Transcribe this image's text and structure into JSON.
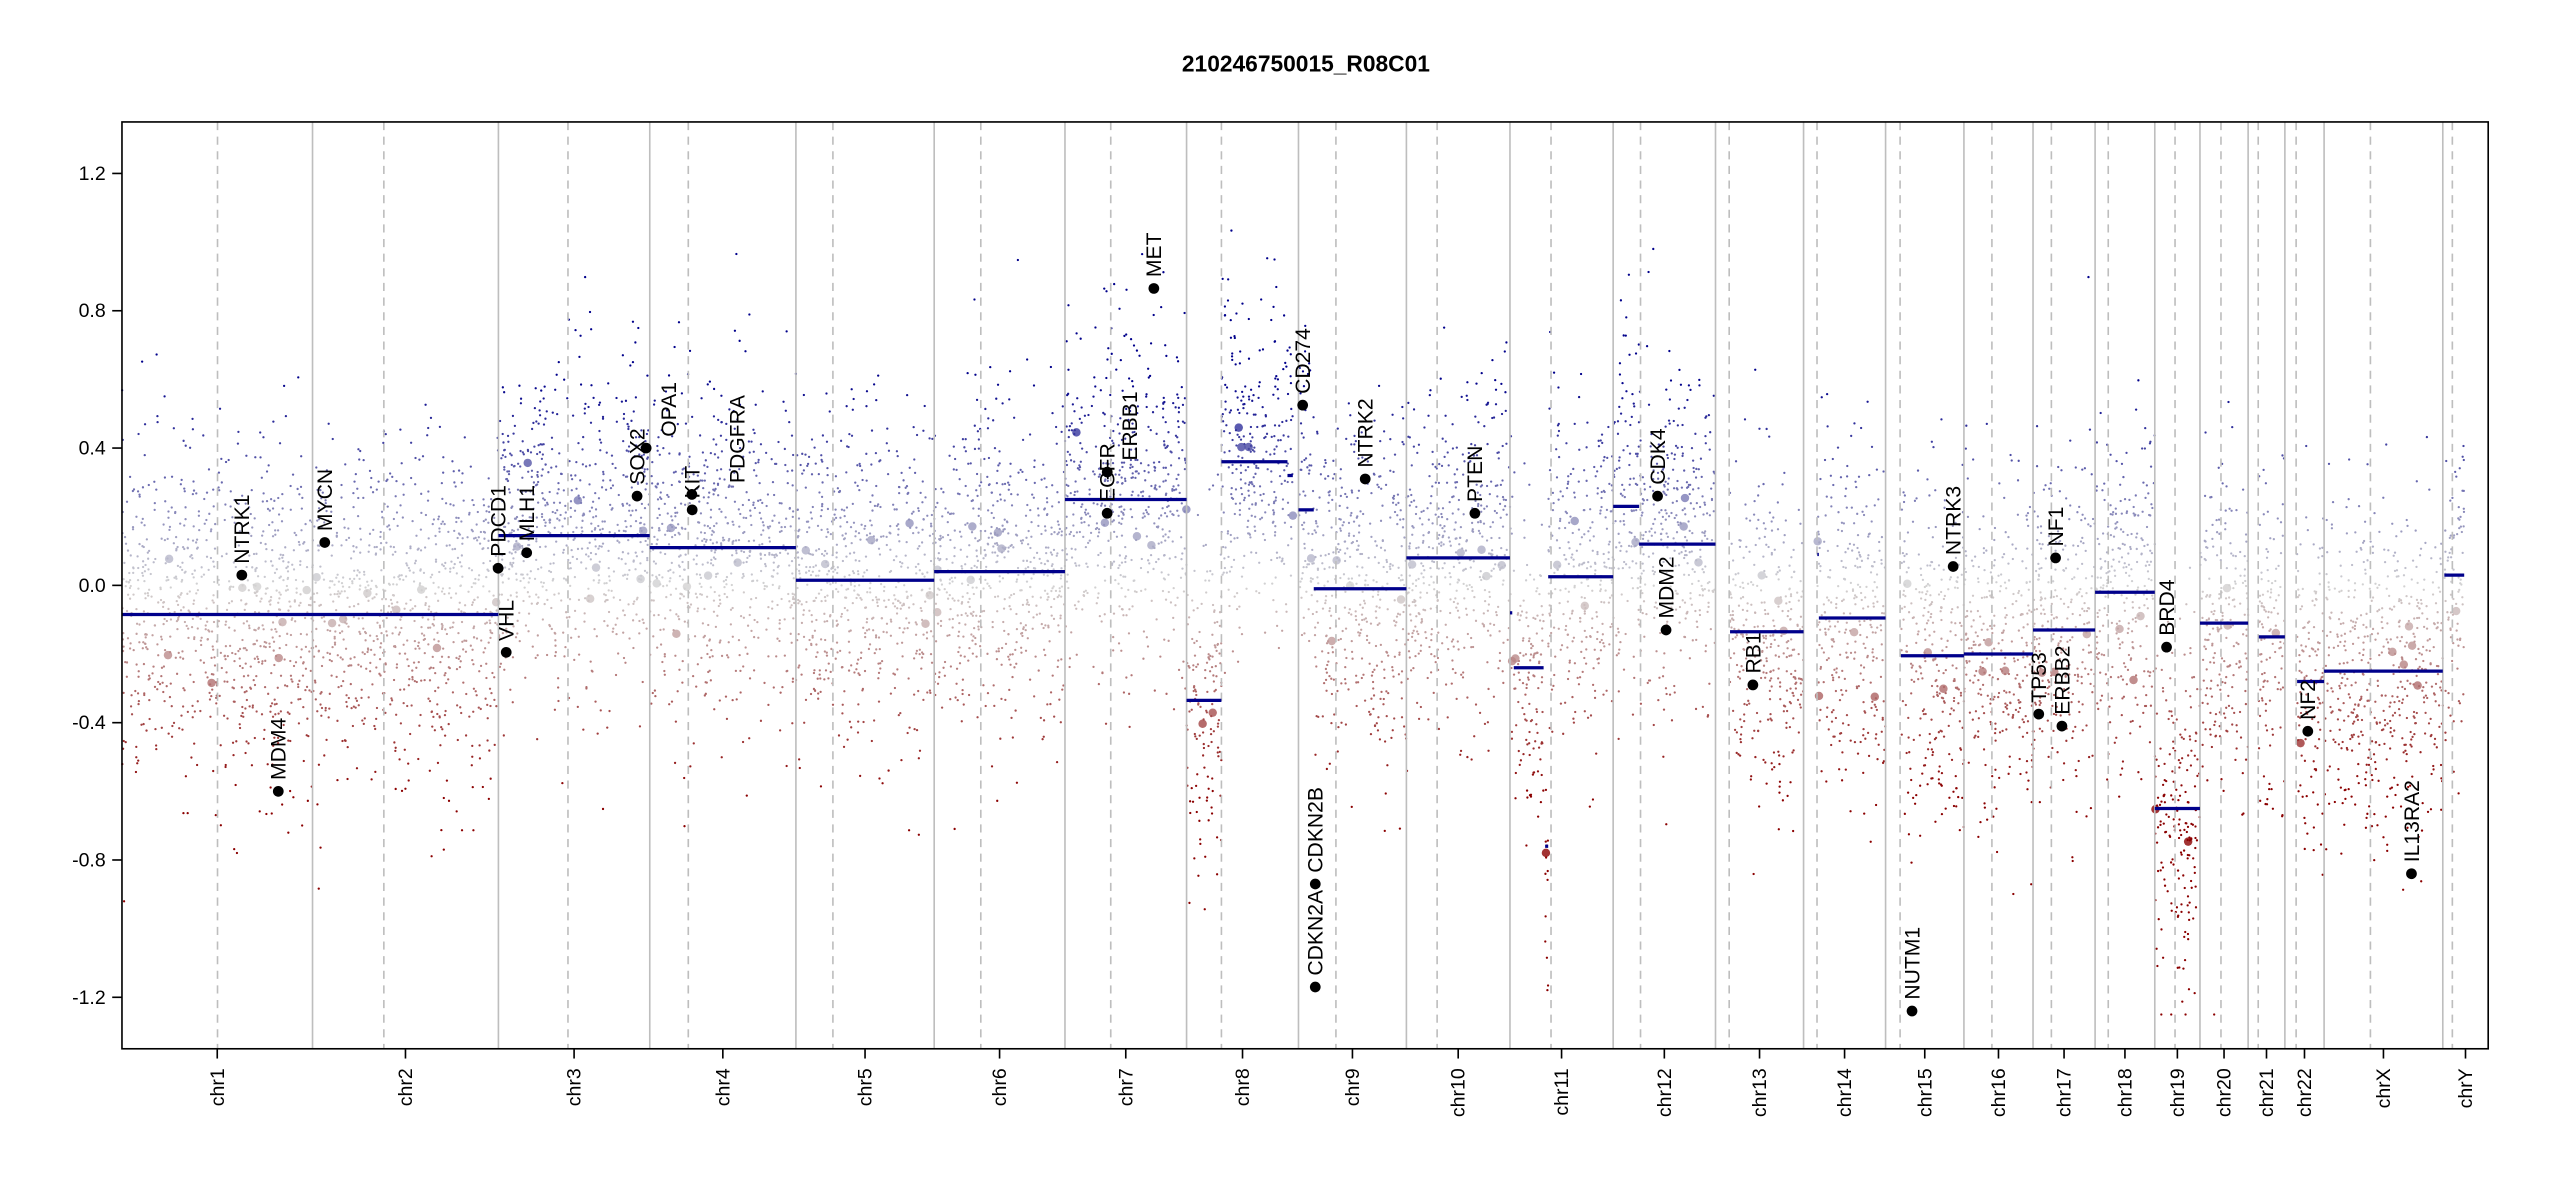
{
  "chart_data": {
    "type": "scatter",
    "title": "210246750015_R08C01",
    "xlabel": "",
    "ylabel": "",
    "ylim": [
      -1.35,
      1.35
    ],
    "yticks": [
      "-1.2",
      "-0.8",
      "-0.4",
      "0.0",
      "0.4",
      "0.8",
      "1.2"
    ],
    "grid": false,
    "colors": {
      "gain": "#00008b",
      "neutral": "#d3d3d3",
      "loss": "#8b0000",
      "segment": "#00008b",
      "chrom_line": "#bebebe",
      "gene": "#000000"
    },
    "chromosomes": [
      {
        "name": "chr1",
        "length_mb": 249.3,
        "centromere_mb": 125.0
      },
      {
        "name": "chr2",
        "length_mb": 243.2,
        "centromere_mb": 93.3
      },
      {
        "name": "chr3",
        "length_mb": 198.0,
        "centromere_mb": 91.0
      },
      {
        "name": "chr4",
        "length_mb": 191.2,
        "centromere_mb": 50.4
      },
      {
        "name": "chr5",
        "length_mb": 180.9,
        "centromere_mb": 48.4
      },
      {
        "name": "chr6",
        "length_mb": 171.1,
        "centromere_mb": 61.0
      },
      {
        "name": "chr7",
        "length_mb": 159.1,
        "centromere_mb": 59.9
      },
      {
        "name": "chr8",
        "length_mb": 146.4,
        "centromere_mb": 45.6
      },
      {
        "name": "chr9",
        "length_mb": 141.2,
        "centromere_mb": 49.0
      },
      {
        "name": "chr10",
        "length_mb": 135.5,
        "centromere_mb": 40.2
      },
      {
        "name": "chr11",
        "length_mb": 135.0,
        "centromere_mb": 53.7
      },
      {
        "name": "chr12",
        "length_mb": 133.9,
        "centromere_mb": 35.8
      },
      {
        "name": "chr13",
        "length_mb": 115.2,
        "centromere_mb": 17.9
      },
      {
        "name": "chr14",
        "length_mb": 107.3,
        "centromere_mb": 17.6
      },
      {
        "name": "chr15",
        "length_mb": 102.5,
        "centromere_mb": 19.0
      },
      {
        "name": "chr16",
        "length_mb": 90.4,
        "centromere_mb": 36.6
      },
      {
        "name": "chr17",
        "length_mb": 81.2,
        "centromere_mb": 24.0
      },
      {
        "name": "chr18",
        "length_mb": 78.1,
        "centromere_mb": 17.2
      },
      {
        "name": "chr19",
        "length_mb": 59.1,
        "centromere_mb": 26.5
      },
      {
        "name": "chr20",
        "length_mb": 63.0,
        "centromere_mb": 27.5
      },
      {
        "name": "chr21",
        "length_mb": 48.1,
        "centromere_mb": 13.2
      },
      {
        "name": "chr22",
        "length_mb": 51.3,
        "centromere_mb": 14.7
      },
      {
        "name": "chrX",
        "length_mb": 155.3,
        "centromere_mb": 60.6
      },
      {
        "name": "chrY",
        "length_mb": 59.4,
        "centromere_mb": 12.5
      }
    ],
    "segments": [
      {
        "chr": "chr1",
        "start_mb": 0,
        "end_mb": 249.3,
        "value": -0.085
      },
      {
        "chr": "chr2",
        "start_mb": 0,
        "end_mb": 243.2,
        "value": -0.085
      },
      {
        "chr": "chr3",
        "start_mb": 0,
        "end_mb": 198.0,
        "value": 0.145
      },
      {
        "chr": "chr4",
        "start_mb": 0,
        "end_mb": 191.2,
        "value": 0.11
      },
      {
        "chr": "chr5",
        "start_mb": 0,
        "end_mb": 180.9,
        "value": 0.015
      },
      {
        "chr": "chr6",
        "start_mb": 0,
        "end_mb": 171.1,
        "value": 0.04
      },
      {
        "chr": "chr7",
        "start_mb": 0,
        "end_mb": 159.1,
        "value": 0.25
      },
      {
        "chr": "chr8",
        "start_mb": 0,
        "end_mb": 45.6,
        "value": -0.335
      },
      {
        "chr": "chr8",
        "start_mb": 45.6,
        "end_mb": 132,
        "value": 0.36
      },
      {
        "chr": "chr8",
        "start_mb": 132,
        "end_mb": 139,
        "value": 0.32
      },
      {
        "chr": "chr9",
        "start_mb": 0,
        "end_mb": 20,
        "value": 0.22
      },
      {
        "chr": "chr9",
        "start_mb": 20,
        "end_mb": 141.2,
        "value": -0.01
      },
      {
        "chr": "chr10",
        "start_mb": 0,
        "end_mb": 135.5,
        "value": 0.08
      },
      {
        "chr": "chr11",
        "start_mb": 0,
        "end_mb": 3,
        "value": -0.08
      },
      {
        "chr": "chr11",
        "start_mb": 5,
        "end_mb": 44,
        "value": -0.24
      },
      {
        "chr": "chr11",
        "start_mb": 46,
        "end_mb": 50,
        "value": -0.76
      },
      {
        "chr": "chr11",
        "start_mb": 50,
        "end_mb": 135.0,
        "value": 0.025
      },
      {
        "chr": "chr12",
        "start_mb": 0,
        "end_mb": 34,
        "value": 0.23
      },
      {
        "chr": "chr12",
        "start_mb": 34,
        "end_mb": 133.9,
        "value": 0.12
      },
      {
        "chr": "chr13",
        "start_mb": 19,
        "end_mb": 115.2,
        "value": -0.135
      },
      {
        "chr": "chr14",
        "start_mb": 18,
        "end_mb": 20,
        "value": 0.09
      },
      {
        "chr": "chr14",
        "start_mb": 20,
        "end_mb": 107.3,
        "value": -0.095
      },
      {
        "chr": "chr15",
        "start_mb": 20,
        "end_mb": 102.5,
        "value": -0.205
      },
      {
        "chr": "chr16",
        "start_mb": 0,
        "end_mb": 90.4,
        "value": -0.2
      },
      {
        "chr": "chr17",
        "start_mb": 0,
        "end_mb": 81.2,
        "value": -0.13
      },
      {
        "chr": "chr18",
        "start_mb": 0,
        "end_mb": 78.1,
        "value": -0.02
      },
      {
        "chr": "chr19",
        "start_mb": 0,
        "end_mb": 59.1,
        "value": -0.65
      },
      {
        "chr": "chr20",
        "start_mb": 0,
        "end_mb": 63.0,
        "value": -0.11
      },
      {
        "chr": "chr21",
        "start_mb": 14,
        "end_mb": 48.1,
        "value": -0.15
      },
      {
        "chr": "chr22",
        "start_mb": 16,
        "end_mb": 51.3,
        "value": -0.28
      },
      {
        "chr": "chrX",
        "start_mb": 0,
        "end_mb": 155.3,
        "value": -0.25
      },
      {
        "chr": "chrY",
        "start_mb": 2,
        "end_mb": 28,
        "value": 0.03
      }
    ],
    "genes": [
      {
        "name": "NTRK1",
        "chr": "chr1",
        "pos_mb": 156.8,
        "value": 0.03
      },
      {
        "name": "MDM4",
        "chr": "chr1",
        "pos_mb": 204.5,
        "value": -0.6
      },
      {
        "name": "MYCN",
        "chr": "chr2",
        "pos_mb": 16.0,
        "value": 0.125
      },
      {
        "name": "PDCD1",
        "chr": "chr2",
        "pos_mb": 242.8,
        "value": 0.05
      },
      {
        "name": "VHL",
        "chr": "chr3",
        "pos_mb": 10.2,
        "value": -0.195
      },
      {
        "name": "MLH1",
        "chr": "chr3",
        "pos_mb": 37.0,
        "value": 0.095
      },
      {
        "name": "SOX2",
        "chr": "chr3",
        "pos_mb": 181.4,
        "value": 0.26
      },
      {
        "name": "OPA1",
        "chr": "chr3",
        "pos_mb": 193.3,
        "value": 0.4
      },
      {
        "name": "KIT",
        "chr": "chr4",
        "pos_mb": 55.5,
        "value": 0.22
      },
      {
        "name": "PDGFRA",
        "chr": "chr4",
        "pos_mb": 55.1,
        "value": 0.265
      },
      {
        "name": "EGFR",
        "chr": "chr7",
        "pos_mb": 55.2,
        "value": 0.21
      },
      {
        "name": "ERBB1",
        "chr": "chr7",
        "pos_mb": 55.3,
        "value": 0.33
      },
      {
        "name": "MET",
        "chr": "chr7",
        "pos_mb": 116.3,
        "value": 0.865
      },
      {
        "name": "CD274",
        "chr": "chr9",
        "pos_mb": 5.5,
        "value": 0.525
      },
      {
        "name": "CDKN2A",
        "chr": "chr9",
        "pos_mb": 21.97,
        "value": -1.17
      },
      {
        "name": "CDKN2B",
        "chr": "chr9",
        "pos_mb": 22.0,
        "value": -0.87
      },
      {
        "name": "NTRK2",
        "chr": "chr9",
        "pos_mb": 87.3,
        "value": 0.31
      },
      {
        "name": "PTEN",
        "chr": "chr10",
        "pos_mb": 89.6,
        "value": 0.21
      },
      {
        "name": "CDK4",
        "chr": "chr12",
        "pos_mb": 58.1,
        "value": 0.26
      },
      {
        "name": "MDM2",
        "chr": "chr12",
        "pos_mb": 69.2,
        "value": -0.13
      },
      {
        "name": "RB1",
        "chr": "chr13",
        "pos_mb": 48.9,
        "value": -0.29
      },
      {
        "name": "NUTM1",
        "chr": "chr15",
        "pos_mb": 34.6,
        "value": -1.24
      },
      {
        "name": "NTRK3",
        "chr": "chr15",
        "pos_mb": 88.4,
        "value": 0.055
      },
      {
        "name": "TP53",
        "chr": "chr17",
        "pos_mb": 7.5,
        "value": -0.375
      },
      {
        "name": "NF1",
        "chr": "chr17",
        "pos_mb": 29.5,
        "value": 0.08
      },
      {
        "name": "ERBB2",
        "chr": "chr17",
        "pos_mb": 37.8,
        "value": -0.41
      },
      {
        "name": "BRD4",
        "chr": "chr19",
        "pos_mb": 15.4,
        "value": -0.18
      },
      {
        "name": "NF2",
        "chr": "chr22",
        "pos_mb": 30.0,
        "value": -0.425
      },
      {
        "name": "IL13RA2",
        "chr": "chrX",
        "pos_mb": 114.3,
        "value": -0.84
      }
    ]
  }
}
